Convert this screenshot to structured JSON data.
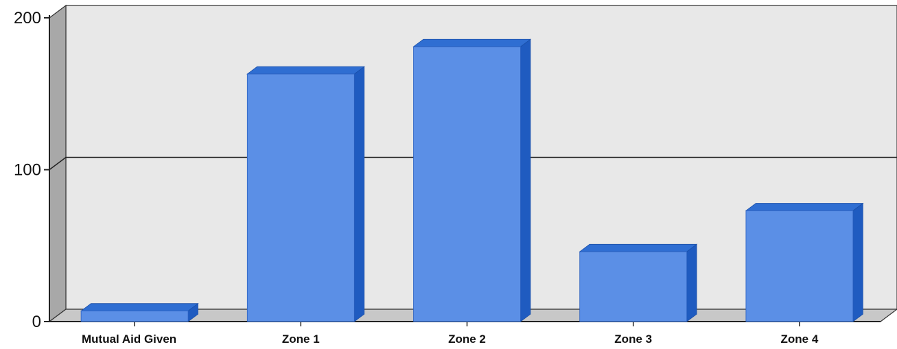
{
  "chart_data": {
    "type": "bar",
    "categories": [
      "Mutual Aid Given",
      "Zone 1",
      "Zone 2",
      "Zone 3",
      "Zone 4"
    ],
    "values": [
      7,
      163,
      181,
      46,
      73
    ],
    "ylim": [
      0,
      200
    ],
    "yticks": [
      0,
      100,
      200
    ],
    "ytick_labels": [
      "0",
      "100",
      "200"
    ],
    "grid": true,
    "three_d": true,
    "colors": {
      "bar_front": "#5B8FE6",
      "bar_top": "#2F6ED2",
      "bar_side": "#1F5BC0",
      "wall_back": "#e8e8e8",
      "wall_side": "#a8a8a8",
      "floor": "#c8c8c8",
      "gridline": "#222222"
    }
  }
}
